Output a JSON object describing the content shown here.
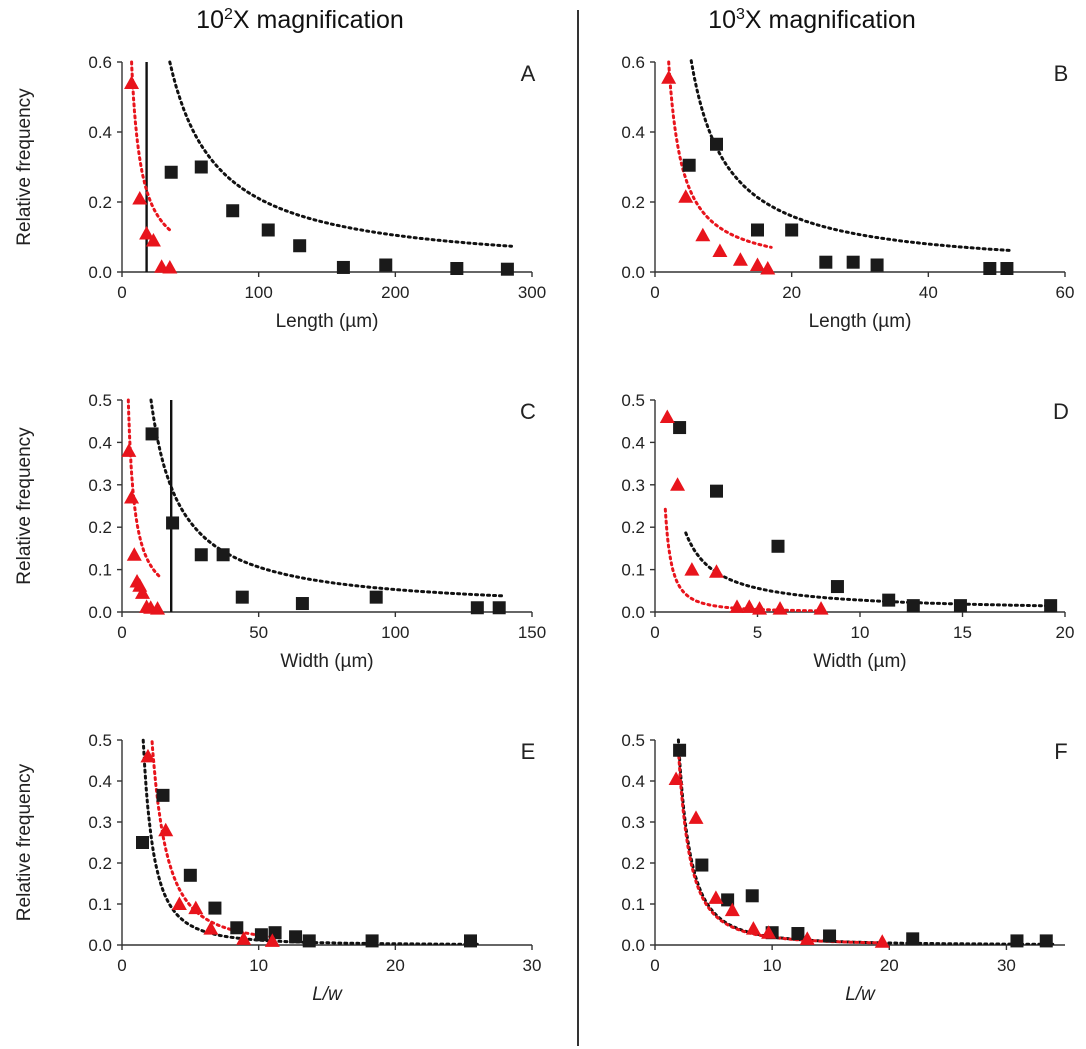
{
  "figure": {
    "column_titles": [
      {
        "base": "10",
        "exp": "2",
        "rest": "X magnification"
      },
      {
        "base": "10",
        "exp": "3",
        "rest": "X magnification"
      }
    ]
  },
  "colors": {
    "series_black": "#1a1a1a",
    "series_red": "#e8141c",
    "fit_black": "#111111",
    "fit_red": "#e8141c",
    "threshold_line": "#111111"
  },
  "chart_data": [
    {
      "panel": "A",
      "type": "scatter",
      "xlabel": "Length (µm)",
      "ylabel": "Relative frequency",
      "xlabel_italic": false,
      "xlim": [
        0,
        300
      ],
      "ylim": [
        0,
        0.6
      ],
      "xticks": [
        0,
        100,
        200,
        300
      ],
      "yticks": [
        0.0,
        0.2,
        0.4,
        0.6
      ],
      "ytick_labels": [
        "0.0",
        "0.2",
        "0.4",
        "0.6"
      ],
      "threshold_x": 18,
      "series": [
        {
          "marker": "square",
          "color": "black",
          "x": [
            36,
            58,
            81,
            107,
            130,
            162,
            193,
            245,
            282
          ],
          "y": [
            0.285,
            0.3,
            0.175,
            0.12,
            0.075,
            0.013,
            0.02,
            0.01,
            0.008
          ],
          "fit": {
            "form": "power",
            "k": 21,
            "p": 1,
            "x_from": 35,
            "x_to": 285
          }
        },
        {
          "marker": "triangle",
          "color": "red",
          "x": [
            7,
            13,
            18,
            23,
            29,
            35
          ],
          "y": [
            0.54,
            0.21,
            0.11,
            0.09,
            0.015,
            0.013
          ],
          "fit": {
            "form": "power",
            "k": 4.2,
            "p": 1,
            "x_from": 7,
            "x_to": 36
          }
        }
      ]
    },
    {
      "panel": "B",
      "type": "scatter",
      "xlabel": "Length (µm)",
      "ylabel": "",
      "xlabel_italic": false,
      "xlim": [
        0,
        60
      ],
      "ylim": [
        0,
        0.6
      ],
      "xticks": [
        0,
        20,
        40,
        60
      ],
      "yticks": [
        0.0,
        0.2,
        0.4,
        0.6
      ],
      "ytick_labels": [
        "0.0",
        "0.2",
        "0.4",
        "0.6"
      ],
      "series": [
        {
          "marker": "square",
          "color": "black",
          "x": [
            5,
            9,
            15,
            20,
            25,
            29,
            32.5,
            49,
            51.5
          ],
          "y": [
            0.305,
            0.365,
            0.12,
            0.12,
            0.028,
            0.028,
            0.02,
            0.01,
            0.01
          ],
          "fit": {
            "form": "power",
            "k": 3.2,
            "p": 1,
            "x_from": 5.3,
            "x_to": 52
          }
        },
        {
          "marker": "triangle",
          "color": "red",
          "x": [
            2,
            4.5,
            7,
            9.5,
            12.5,
            15,
            16.5
          ],
          "y": [
            0.555,
            0.215,
            0.105,
            0.06,
            0.035,
            0.02,
            0.01
          ],
          "fit": {
            "form": "power",
            "k": 1.2,
            "p": 1,
            "x_from": 2,
            "x_to": 17
          }
        }
      ]
    },
    {
      "panel": "C",
      "type": "scatter",
      "xlabel": "Width (µm)",
      "ylabel": "Relative frequency",
      "xlabel_italic": false,
      "xlim": [
        0,
        150
      ],
      "ylim": [
        0,
        0.5
      ],
      "xticks": [
        0,
        50,
        100,
        150
      ],
      "yticks": [
        0.0,
        0.1,
        0.2,
        0.3,
        0.4,
        0.5
      ],
      "ytick_labels": [
        "0.0",
        "0.1",
        "0.2",
        "0.3",
        "0.4",
        "0.5"
      ],
      "threshold_x": 18,
      "series": [
        {
          "marker": "square",
          "color": "black",
          "x": [
            11,
            18.5,
            29,
            37,
            44,
            66,
            93,
            130,
            138
          ],
          "y": [
            0.42,
            0.21,
            0.135,
            0.135,
            0.035,
            0.02,
            0.035,
            0.01,
            0.01
          ],
          "fit": {
            "form": "power",
            "k": 5.3,
            "p": 1,
            "x_from": 10.6,
            "x_to": 140
          }
        },
        {
          "marker": "triangle",
          "color": "red",
          "x": [
            2.5,
            3.5,
            4.5,
            5.5,
            6.5,
            7.5,
            9,
            10.5,
            13
          ],
          "y": [
            0.38,
            0.27,
            0.135,
            0.072,
            0.062,
            0.045,
            0.012,
            0.01,
            0.008
          ],
          "fit": {
            "form": "power",
            "k": 1.15,
            "p": 1,
            "x_from": 2.3,
            "x_to": 14
          }
        }
      ]
    },
    {
      "panel": "D",
      "type": "scatter",
      "xlabel": "Width (µm)",
      "ylabel": "",
      "xlabel_italic": false,
      "xlim": [
        0,
        20
      ],
      "ylim": [
        0,
        0.5
      ],
      "xticks": [
        0,
        5,
        10,
        15,
        20
      ],
      "yticks": [
        0.0,
        0.1,
        0.2,
        0.3,
        0.4,
        0.5
      ],
      "ytick_labels": [
        "0.0",
        "0.1",
        "0.2",
        "0.3",
        "0.4",
        "0.5"
      ],
      "series": [
        {
          "marker": "square",
          "color": "black",
          "x": [
            1.2,
            3,
            6,
            8.9,
            11.4,
            12.6,
            14.9,
            19.3
          ],
          "y": [
            0.435,
            0.285,
            0.155,
            0.06,
            0.028,
            0.015,
            0.015,
            0.015
          ],
          "fit": {
            "form": "power",
            "k": 0.28,
            "p": 1,
            "x_from": 1.5,
            "x_to": 19.5
          }
        },
        {
          "marker": "triangle",
          "color": "red",
          "x": [
            0.6,
            1.1,
            1.8,
            3,
            4,
            4.6,
            5.1,
            6.1,
            8.1
          ],
          "y": [
            0.46,
            0.3,
            0.1,
            0.095,
            0.012,
            0.012,
            0.008,
            0.008,
            0.008
          ],
          "fit": {
            "form": "power",
            "k": 0.08,
            "p": 1.6,
            "x_from": 0.5,
            "x_to": 8.2
          }
        }
      ]
    },
    {
      "panel": "E",
      "type": "scatter",
      "xlabel": "L/w",
      "ylabel": "Relative frequency",
      "xlabel_italic": true,
      "xlim": [
        0,
        30
      ],
      "ylim": [
        0,
        0.5
      ],
      "xticks": [
        0,
        10,
        20,
        30
      ],
      "yticks": [
        0.0,
        0.1,
        0.2,
        0.3,
        0.4,
        0.5
      ],
      "ytick_labels": [
        "0.0",
        "0.1",
        "0.2",
        "0.3",
        "0.4",
        "0.5"
      ],
      "series": [
        {
          "marker": "square",
          "color": "black",
          "x": [
            1.5,
            3,
            5,
            6.8,
            8.4,
            10.2,
            11.2,
            12.7,
            13.7,
            18.3,
            25.5
          ],
          "y": [
            0.25,
            0.365,
            0.17,
            0.09,
            0.042,
            0.025,
            0.03,
            0.02,
            0.01,
            0.01,
            0.01
          ],
          "fit": {
            "form": "power",
            "k": 1.2,
            "p": 2,
            "x_from": 1.55,
            "x_to": 26
          }
        },
        {
          "marker": "triangle",
          "color": "red",
          "x": [
            1.9,
            3.2,
            4.2,
            5.4,
            6.5,
            8.9,
            11
          ],
          "y": [
            0.46,
            0.28,
            0.1,
            0.09,
            0.04,
            0.015,
            0.01
          ],
          "fit": {
            "form": "power",
            "k": 2.4,
            "p": 2,
            "x_from": 2.2,
            "x_to": 11.5
          }
        }
      ]
    },
    {
      "panel": "F",
      "type": "scatter",
      "xlabel": "L/w",
      "ylabel": "",
      "xlabel_italic": true,
      "xlim": [
        0,
        35
      ],
      "ylim": [
        0,
        0.5
      ],
      "xticks": [
        0,
        10,
        20,
        30
      ],
      "yticks": [
        0.0,
        0.1,
        0.2,
        0.3,
        0.4,
        0.5
      ],
      "ytick_labels": [
        "0.0",
        "0.1",
        "0.2",
        "0.3",
        "0.4",
        "0.5"
      ],
      "series": [
        {
          "marker": "square",
          "color": "black",
          "x": [
            2.1,
            4,
            6.2,
            8.3,
            10,
            12.2,
            14.9,
            22,
            30.9,
            33.4
          ],
          "y": [
            0.475,
            0.195,
            0.11,
            0.12,
            0.03,
            0.028,
            0.022,
            0.015,
            0.01,
            0.01
          ],
          "fit": {
            "form": "power",
            "k": 2.0,
            "p": 2,
            "x_from": 2.0,
            "x_to": 34
          }
        },
        {
          "marker": "triangle",
          "color": "red",
          "x": [
            1.8,
            3.5,
            5.2,
            6.6,
            8.4,
            9.7,
            13,
            19.4
          ],
          "y": [
            0.405,
            0.31,
            0.115,
            0.085,
            0.04,
            0.03,
            0.015,
            0.008
          ],
          "fit": {
            "form": "power",
            "k": 1.9,
            "p": 2,
            "x_from": 2.0,
            "x_to": 19.6
          }
        }
      ]
    }
  ]
}
